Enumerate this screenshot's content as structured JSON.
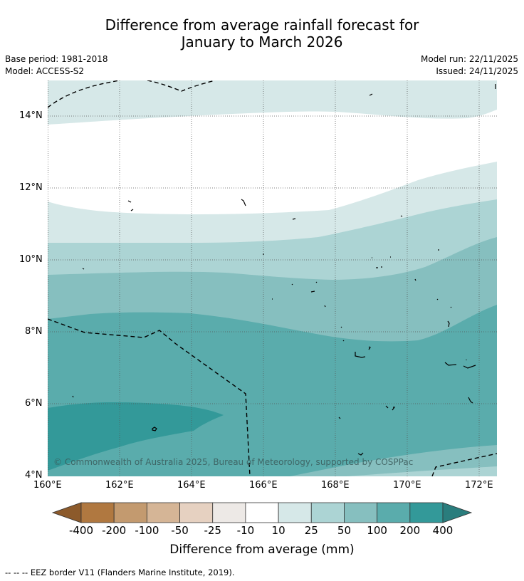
{
  "title": {
    "line1": "Difference from average rainfall forecast for",
    "line2": "January to March 2026"
  },
  "meta": {
    "base_period": "Base period: 1981-2018",
    "model": "Model: ACCESS-S2",
    "model_run": "Model run: 22/11/2025",
    "issued": "Issued: 24/11/2025"
  },
  "axes": {
    "lon_labels": [
      "160°E",
      "162°E",
      "164°E",
      "166°E",
      "168°E",
      "170°E",
      "172°E"
    ],
    "lat_labels": [
      "14°N",
      "12°N",
      "10°N",
      "8°N",
      "6°N",
      "4°N"
    ]
  },
  "copyright": "© Commonwealth of Australia 2025, Bureau of Meteorology, supported by COSPPac",
  "colorbar": {
    "title": "Difference from average (mm)",
    "tick_labels": [
      "-400",
      "-200",
      "-100",
      "-50",
      "-25",
      "-10",
      "10",
      "25",
      "50",
      "100",
      "200",
      "400"
    ],
    "colors": [
      "#8c5a2b",
      "#b07840",
      "#c39a6f",
      "#d5b596",
      "#e6d1c1",
      "#ede9e6",
      "#ffffff",
      "#d6e8e8",
      "#acd4d4",
      "#86bfbf",
      "#5aacac",
      "#339999",
      "#2a7d7d"
    ]
  },
  "legend": {
    "eez_note": "--  --  -- EEZ border V11 (Flanders Marine Institute, 2019)."
  }
}
